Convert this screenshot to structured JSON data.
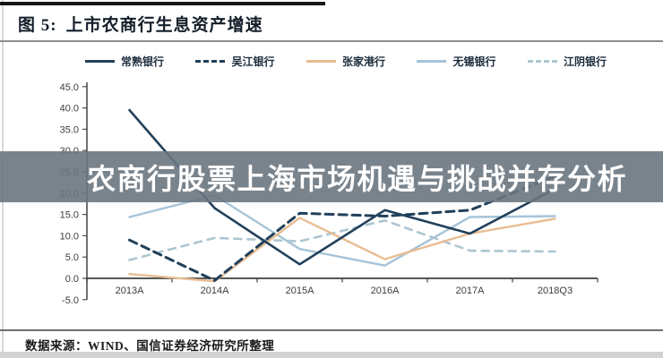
{
  "figure": {
    "label": "图 5:",
    "title": "上市农商行生息资产增速"
  },
  "banner": {
    "text": "农商行股票上海市场机遇与挑战并存分析",
    "bg": "rgba(106,118,128,0.9)",
    "text_color": "#ffffff"
  },
  "source": {
    "text": "数据来源：WIND、国信证券经济研究所整理"
  },
  "chart_data": {
    "type": "line",
    "title": "上市农商行生息资产增速",
    "xlabel": "",
    "ylabel": "",
    "x_categories": [
      "2013A",
      "2014A",
      "2015A",
      "2016A",
      "2017A",
      "2018Q3"
    ],
    "ylim": [
      -5.0,
      45.0
    ],
    "y_ticks": [
      "45.0",
      "40.0",
      "35.0",
      "30.0",
      "25.0",
      "20.0",
      "15.0",
      "10.0",
      "5.0",
      "0.0",
      "-5.0"
    ],
    "grid": false,
    "legend_position": "top",
    "series": [
      {
        "name": "常熟银行",
        "style": "solid",
        "color": "#21405a",
        "width": 2.6,
        "dash": null,
        "values": [
          39.5,
          16.5,
          3.3,
          16.0,
          10.5,
          21.0
        ]
      },
      {
        "name": "吴江银行",
        "style": "dashed",
        "color": "#21405a",
        "width": 3.0,
        "dash": "9 6",
        "values": [
          9.0,
          -0.5,
          15.3,
          14.6,
          16.0,
          24.0
        ]
      },
      {
        "name": "张家港行",
        "style": "solid",
        "color": "#e8bd92",
        "width": 2.4,
        "dash": null,
        "values": [
          1.0,
          -0.7,
          14.2,
          4.5,
          10.5,
          14.0
        ]
      },
      {
        "name": "无锡银行",
        "style": "solid",
        "color": "#a5c4d8",
        "width": 2.4,
        "dash": null,
        "values": [
          14.4,
          19.5,
          6.9,
          3.0,
          14.4,
          14.6
        ]
      },
      {
        "name": "江阴银行",
        "style": "dashed",
        "color": "#adc5d1",
        "width": 2.6,
        "dash": "8 7",
        "values": [
          4.3,
          9.5,
          8.7,
          13.6,
          6.5,
          6.3
        ]
      }
    ]
  }
}
